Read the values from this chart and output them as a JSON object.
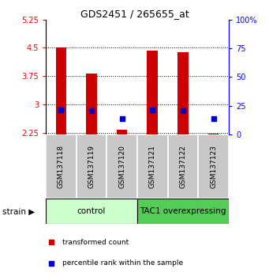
{
  "title": "GDS2451 / 265655_at",
  "samples": [
    "GSM137118",
    "GSM137119",
    "GSM137120",
    "GSM137121",
    "GSM137122",
    "GSM137123"
  ],
  "red_values": [
    4.52,
    3.82,
    2.32,
    4.42,
    4.38,
    2.22
  ],
  "blue_values": [
    2.855,
    2.825,
    2.62,
    2.855,
    2.825,
    2.62
  ],
  "y_min": 2.2,
  "y_max": 5.25,
  "y_ticks_left": [
    2.25,
    3.0,
    3.75,
    4.5,
    5.25
  ],
  "y_ticks_right_vals": [
    0,
    25,
    50,
    75,
    100
  ],
  "y_ticks_right_labels": [
    "0",
    "25",
    "50",
    "75",
    "100%"
  ],
  "bar_width": 0.35,
  "bar_color": "#cc0000",
  "blue_color": "#0000cc",
  "group1_label": "control",
  "group2_label": "TAC1 overexpressing",
  "group1_color": "#ccffcc",
  "group2_color": "#55cc55",
  "group_bg_color": "#c8c8c8",
  "legend_red": "transformed count",
  "legend_blue": "percentile rank within the sample",
  "base": 2.2,
  "title_fontsize": 9,
  "tick_fontsize": 7,
  "label_fontsize": 6.5,
  "group_fontsize": 7.5,
  "legend_fontsize": 6.5
}
